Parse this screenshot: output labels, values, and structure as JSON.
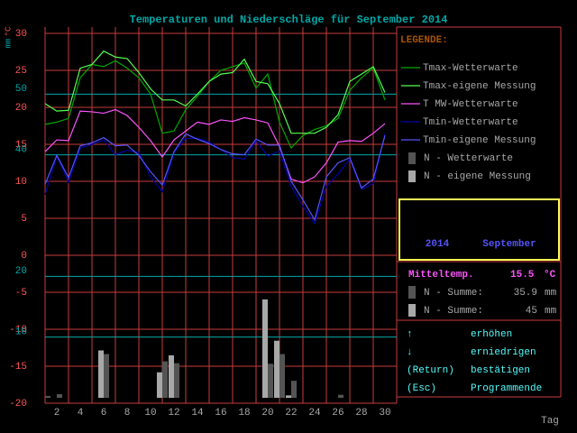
{
  "chart_data": {
    "type": "line",
    "title": "Temperaturen und Niederschläge für September 2014",
    "x_label": "Tag",
    "y_label": "°C",
    "y2_label": "mm",
    "x": [
      1,
      2,
      3,
      4,
      5,
      6,
      7,
      8,
      9,
      10,
      11,
      12,
      13,
      14,
      15,
      16,
      17,
      18,
      19,
      20,
      21,
      22,
      23,
      24,
      25,
      26,
      27,
      28,
      29,
      30
    ],
    "xlim": [
      1,
      31
    ],
    "xticks": [
      2,
      4,
      6,
      8,
      10,
      12,
      14,
      16,
      18,
      20,
      22,
      24,
      26,
      28,
      30
    ],
    "ylim": [
      -20,
      30
    ],
    "yticks": [
      -20,
      -15,
      -10,
      -5,
      0,
      5,
      10,
      15,
      20,
      25,
      30
    ],
    "y2lim": [
      0,
      60
    ],
    "y2ticks": [
      10,
      20,
      40,
      50
    ],
    "grid": true,
    "legend_title": "LEGENDE:",
    "series": [
      {
        "name": "Tmax-Wetterwarte",
        "type": "line",
        "color": "#00a800",
        "values": [
          17.7,
          18.0,
          18.5,
          24.0,
          25.8,
          25.5,
          26.3,
          25.3,
          24.0,
          21.8,
          16.5,
          16.8,
          19.7,
          21.5,
          23.5,
          25.0,
          25.5,
          26.0,
          22.6,
          24.5,
          18.0,
          14.5,
          16.2,
          17.0,
          17.5,
          18.5,
          22.3,
          24.0,
          25.3,
          21.0
        ]
      },
      {
        "name": "Tmax-eigene Messung",
        "type": "line",
        "color": "#54fc54",
        "values": [
          20.5,
          19.5,
          19.6,
          25.3,
          25.8,
          27.6,
          26.8,
          26.6,
          24.7,
          22.5,
          21.0,
          21.0,
          20.2,
          21.8,
          23.5,
          24.5,
          24.7,
          26.5,
          23.5,
          23.2,
          20.5,
          16.5,
          16.5,
          16.5,
          17.3,
          19.0,
          23.5,
          24.5,
          25.5,
          22.0
        ]
      },
      {
        "name": "T MW-Wetterwarte",
        "type": "line",
        "color": "#fc54fc",
        "values": [
          14.0,
          15.6,
          15.5,
          19.5,
          19.4,
          19.2,
          19.7,
          18.9,
          17.3,
          15.5,
          13.3,
          15.6,
          16.8,
          18.0,
          17.7,
          18.3,
          18.1,
          18.6,
          18.3,
          17.9,
          14.7,
          10.3,
          9.8,
          10.6,
          12.5,
          15.3,
          15.5,
          15.4,
          16.5,
          17.8
        ]
      },
      {
        "name": "Tmin-Wetterwarte",
        "type": "line",
        "color": "#0000a8",
        "values": [
          8.2,
          13.4,
          9.9,
          14.5,
          15.0,
          15.6,
          13.6,
          14.2,
          13.9,
          10.6,
          8.6,
          13.9,
          15.8,
          15.8,
          15.3,
          14.3,
          13.2,
          13.0,
          15.5,
          13.4,
          14.1,
          9.3,
          6.6,
          4.3,
          9.3,
          11.0,
          13.0,
          8.9,
          9.7,
          16.4
        ]
      },
      {
        "name": "Tmin-eigene Messung",
        "type": "line",
        "color": "#5454fc",
        "values": [
          9.6,
          13.5,
          10.5,
          14.8,
          15.2,
          15.9,
          14.8,
          14.9,
          13.5,
          11.3,
          9.5,
          14.0,
          16.4,
          15.7,
          15.1,
          14.3,
          13.7,
          13.6,
          15.7,
          14.9,
          14.9,
          10.0,
          7.5,
          4.8,
          10.6,
          12.5,
          13.2,
          9.1,
          10.3,
          16.2
        ]
      },
      {
        "name": "N - Wetterwarte",
        "type": "bar",
        "axis": "y2",
        "color": "#545454",
        "values": [
          0.3,
          0.6,
          0,
          0,
          0,
          7.2,
          0,
          0,
          0,
          0,
          6.0,
          5.7,
          0,
          0,
          0,
          0,
          0,
          0,
          0,
          5.6,
          7.2,
          2.8,
          0,
          0,
          0,
          0.5,
          0,
          0,
          0,
          0
        ]
      },
      {
        "name": "N - eigene Messung",
        "type": "bar",
        "axis": "y2",
        "color": "#a8a8a8",
        "values": [
          0,
          0,
          0,
          0,
          0,
          7.8,
          0,
          0,
          0,
          0,
          4.2,
          7.0,
          0,
          0,
          0,
          0,
          0,
          0,
          0,
          16.2,
          9.4,
          0.4,
          0,
          0,
          0,
          0,
          0,
          0,
          0,
          0
        ]
      }
    ]
  },
  "panel": {
    "year": "2014",
    "month": "September",
    "mean_temp": {
      "label": "Mitteltemp.",
      "value": 15.5,
      "unit": "°C"
    },
    "sums": [
      {
        "label": "N - Summe:",
        "value": 35.9,
        "unit": "mm"
      },
      {
        "label": "N - Summe:",
        "value": 45,
        "unit": "mm"
      }
    ],
    "commands": [
      {
        "key": "↑",
        "label": "erhöhen"
      },
      {
        "key": "↓",
        "label": "erniedrigen"
      },
      {
        "key": "(Return)",
        "label": "bestätigen"
      },
      {
        "key": "(Esc)",
        "label": "Programmende"
      }
    ]
  }
}
